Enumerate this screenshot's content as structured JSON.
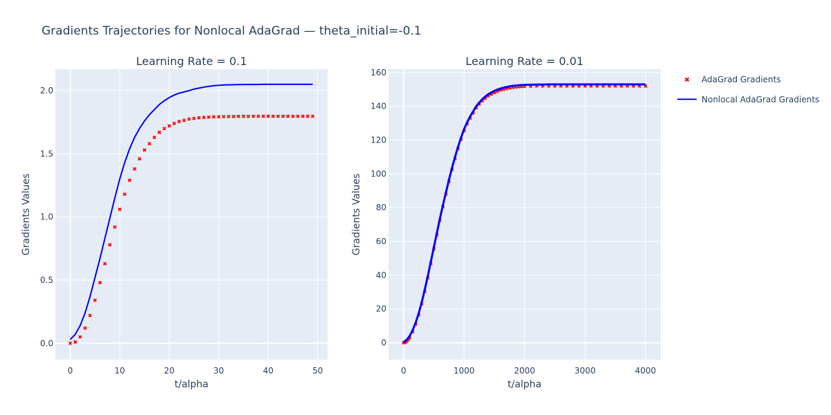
{
  "title": "Gradients Trajectories for Nonlocal AdaGrad — theta_initial=-0.1",
  "colors": {
    "plot_bg": "#e5ecf6",
    "grid": "#ffffff",
    "adagrad": "#ff0000",
    "nonlocal": "#0000ff",
    "text": "#2a3f5f"
  },
  "legend": {
    "placement": "right",
    "items": [
      {
        "label": "AdaGrad Gradients",
        "marker": "x-marker",
        "color": "#ff0000"
      },
      {
        "label": "Nonlocal AdaGrad Gradients",
        "marker": "line",
        "color": "#0000ff"
      }
    ]
  },
  "chart_data": [
    {
      "type": "line",
      "title": "Learning Rate = 0.1",
      "xlabel": "t/alpha",
      "ylabel": "Gradients Values",
      "xlim": [
        -3,
        52
      ],
      "ylim": [
        -0.13,
        2.17
      ],
      "xticks": [
        0,
        10,
        20,
        30,
        40,
        50
      ],
      "yticks": [
        0,
        0.5,
        1,
        1.5,
        2
      ],
      "ytick_labels": [
        "0.0",
        "0.5",
        "1.0",
        "1.5",
        "2.0"
      ],
      "grid": true,
      "series": [
        {
          "name": "AdaGrad Gradients",
          "mode": "markers",
          "x": [
            0,
            1,
            2,
            3,
            4,
            5,
            6,
            7,
            8,
            9,
            10,
            11,
            12,
            13,
            14,
            15,
            16,
            17,
            18,
            19,
            20,
            21,
            22,
            23,
            24,
            25,
            26,
            27,
            28,
            29,
            30,
            31,
            32,
            33,
            34,
            35,
            36,
            37,
            38,
            39,
            40,
            41,
            42,
            43,
            44,
            45,
            46,
            47,
            48,
            49
          ],
          "y": [
            0.0,
            0.01,
            0.05,
            0.12,
            0.22,
            0.34,
            0.48,
            0.63,
            0.78,
            0.92,
            1.06,
            1.18,
            1.29,
            1.38,
            1.46,
            1.53,
            1.58,
            1.63,
            1.67,
            1.7,
            1.72,
            1.74,
            1.755,
            1.765,
            1.775,
            1.78,
            1.785,
            1.788,
            1.79,
            1.792,
            1.793,
            1.794,
            1.795,
            1.795,
            1.796,
            1.796,
            1.796,
            1.797,
            1.797,
            1.797,
            1.797,
            1.797,
            1.797,
            1.797,
            1.797,
            1.797,
            1.797,
            1.797,
            1.797,
            1.797
          ]
        },
        {
          "name": "Nonlocal AdaGrad Gradients",
          "mode": "lines",
          "x": [
            0,
            1,
            2,
            3,
            4,
            5,
            6,
            7,
            8,
            9,
            10,
            11,
            12,
            13,
            14,
            15,
            16,
            17,
            18,
            19,
            20,
            21,
            22,
            23,
            24,
            25,
            26,
            27,
            28,
            29,
            30,
            31,
            32,
            33,
            34,
            35,
            36,
            37,
            38,
            39,
            40,
            41,
            42,
            43,
            44,
            45,
            46,
            47,
            48,
            49
          ],
          "y": [
            0.03,
            0.07,
            0.14,
            0.24,
            0.37,
            0.52,
            0.67,
            0.83,
            0.99,
            1.15,
            1.3,
            1.43,
            1.54,
            1.63,
            1.7,
            1.76,
            1.81,
            1.85,
            1.89,
            1.92,
            1.945,
            1.965,
            1.98,
            1.99,
            2.0,
            2.012,
            2.02,
            2.028,
            2.034,
            2.039,
            2.042,
            2.045,
            2.046,
            2.047,
            2.048,
            2.048,
            2.049,
            2.049,
            2.049,
            2.05,
            2.05,
            2.05,
            2.05,
            2.05,
            2.05,
            2.05,
            2.05,
            2.05,
            2.05,
            2.05
          ]
        }
      ]
    },
    {
      "type": "line",
      "title": "Learning Rate = 0.01",
      "xlabel": "t/alpha",
      "ylabel": "Gradients Values",
      "xlim": [
        -250,
        4250
      ],
      "ylim": [
        -10,
        162
      ],
      "xticks": [
        0,
        1000,
        2000,
        3000,
        4000
      ],
      "yticks": [
        0,
        20,
        40,
        60,
        80,
        100,
        120,
        140,
        160
      ],
      "ytick_labels": [
        "0",
        "20",
        "40",
        "60",
        "80",
        "100",
        "120",
        "140",
        "160"
      ],
      "grid": true,
      "series": [
        {
          "name": "AdaGrad Gradients",
          "mode": "markers",
          "x": [
            0,
            25,
            50,
            75,
            100,
            150,
            200,
            250,
            300,
            350,
            400,
            450,
            500,
            550,
            600,
            650,
            700,
            750,
            800,
            850,
            900,
            950,
            1000,
            1050,
            1100,
            1150,
            1200,
            1250,
            1300,
            1350,
            1400,
            1450,
            1500,
            1550,
            1600,
            1650,
            1700,
            1750,
            1800,
            1850,
            1900,
            1950,
            2000,
            2100,
            2200,
            2300,
            2400,
            2500,
            2600,
            2700,
            2800,
            2900,
            3000,
            3100,
            3200,
            3300,
            3400,
            3500,
            3600,
            3700,
            3800,
            3900,
            4000
          ],
          "y": [
            0,
            0.2,
            0.8,
            1.7,
            2.9,
            6.5,
            11,
            16.5,
            23,
            30.5,
            38.5,
            47,
            55.5,
            64,
            72.5,
            80.5,
            88,
            95.5,
            102.5,
            109,
            115,
            120.5,
            125.5,
            129.5,
            133,
            136,
            139,
            141.2,
            143.2,
            144.8,
            146.2,
            147.2,
            148.1,
            148.9,
            149.6,
            150.1,
            150.5,
            150.9,
            151.2,
            151.4,
            151.6,
            151.7,
            151.8,
            151.9,
            152,
            152,
            152,
            152,
            152,
            152,
            152,
            152,
            152,
            152,
            152,
            152,
            152,
            152,
            152,
            152,
            152,
            152,
            152
          ]
        },
        {
          "name": "Nonlocal AdaGrad Gradients",
          "mode": "lines",
          "x": [
            0,
            25,
            50,
            75,
            100,
            150,
            200,
            250,
            300,
            350,
            400,
            450,
            500,
            550,
            600,
            650,
            700,
            750,
            800,
            850,
            900,
            950,
            1000,
            1050,
            1100,
            1150,
            1200,
            1250,
            1300,
            1350,
            1400,
            1450,
            1500,
            1550,
            1600,
            1650,
            1700,
            1750,
            1800,
            1850,
            1900,
            1950,
            2000,
            2100,
            2200,
            2300,
            2400,
            2500,
            2600,
            2700,
            2800,
            2900,
            3000,
            3100,
            3200,
            3300,
            3400,
            3500,
            3600,
            3700,
            3800,
            3900,
            4000
          ],
          "y": [
            0.5,
            1,
            1.8,
            2.8,
            4,
            7.5,
            12,
            17.5,
            24,
            31.5,
            39.5,
            48,
            56.5,
            65,
            73.5,
            81.5,
            89,
            96.5,
            103.5,
            110,
            116,
            121.5,
            126.5,
            130.5,
            134,
            137,
            140,
            142.2,
            144.2,
            145.8,
            147.2,
            148.2,
            149.1,
            149.9,
            150.5,
            151,
            151.4,
            151.8,
            152.1,
            152.3,
            152.5,
            152.6,
            152.7,
            152.8,
            152.9,
            152.9,
            153,
            153,
            153,
            153,
            153,
            153,
            153,
            153,
            153,
            153,
            153,
            153,
            153,
            153,
            153,
            153,
            153
          ]
        }
      ]
    }
  ]
}
